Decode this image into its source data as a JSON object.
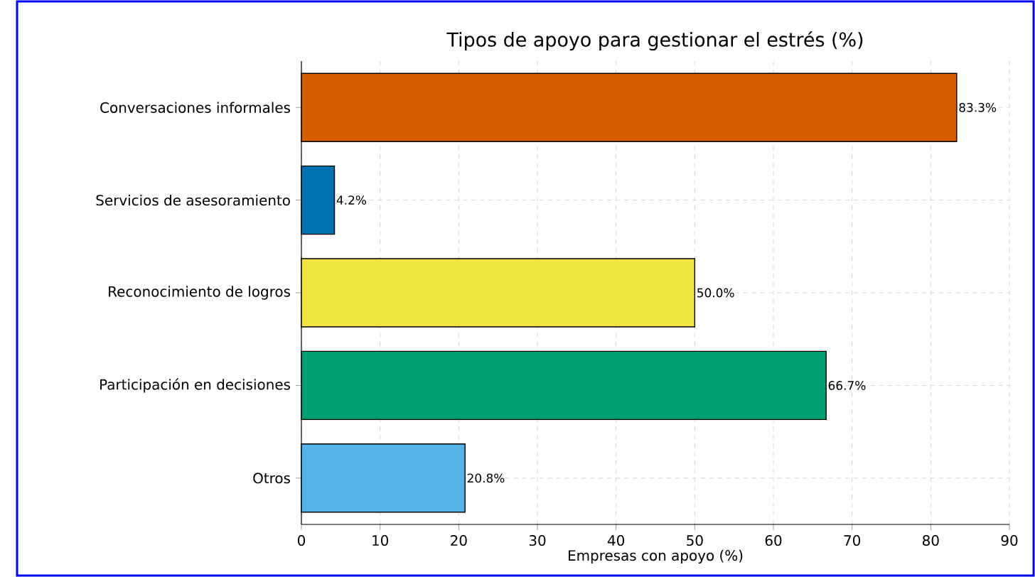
{
  "chart_data": {
    "type": "bar",
    "orientation": "horizontal",
    "title": "Tipos de apoyo para gestionar el estrés (%)",
    "xlabel": "Empresas con apoyo (%)",
    "categories": [
      "Conversaciones informales",
      "Servicios de asesoramiento",
      "Reconocimiento de logros",
      "Participación en decisiones",
      "Otros"
    ],
    "values": [
      83.3,
      4.2,
      50.0,
      66.7,
      20.8
    ],
    "value_labels": [
      "83.3%",
      "4.2%",
      "50.0%",
      "66.7%",
      "20.8%"
    ],
    "colors": [
      "#d55e00",
      "#0072b2",
      "#f0e442",
      "#009e73",
      "#56b4e9"
    ],
    "xlim": [
      0,
      90
    ],
    "xticks": [
      0,
      10,
      20,
      30,
      40,
      50,
      60,
      70,
      80,
      90
    ],
    "grid": true
  }
}
